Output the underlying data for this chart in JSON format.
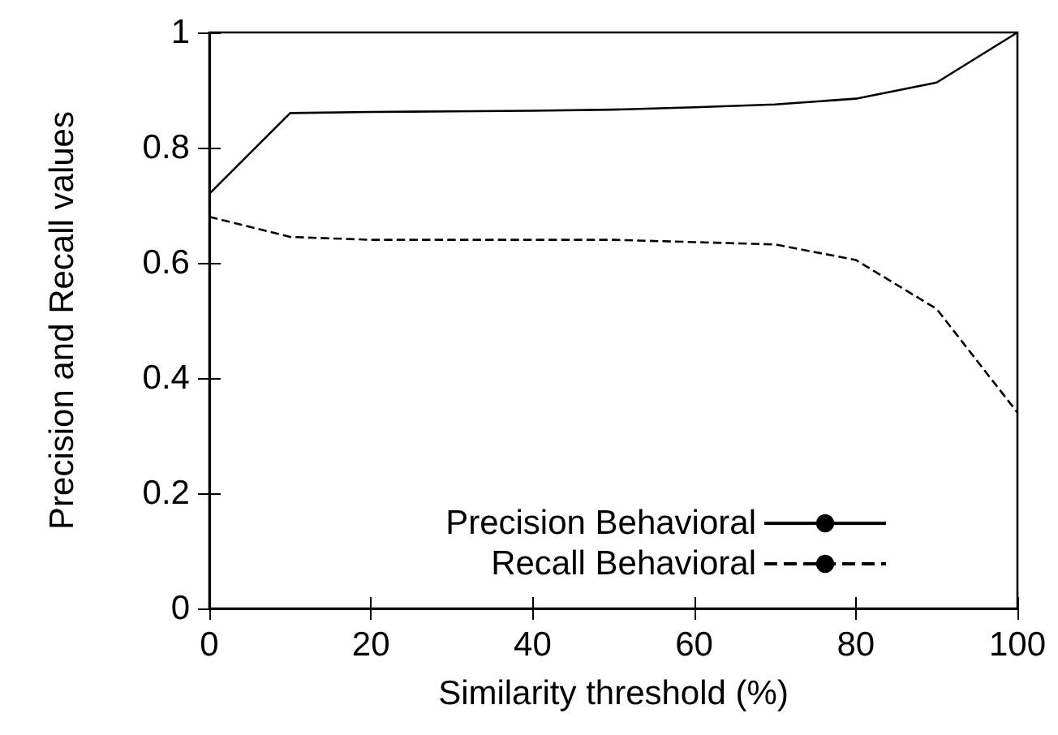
{
  "chart_data": {
    "type": "line",
    "xlabel": "Similarity threshold (%)",
    "ylabel": "Precision and Recall values",
    "x": [
      0,
      10,
      20,
      30,
      40,
      50,
      60,
      70,
      80,
      90,
      100
    ],
    "series": [
      {
        "name": "Precision Behavioral",
        "color": "#000000",
        "line_style": "solid",
        "values": [
          0.72,
          0.86,
          0.862,
          0.863,
          0.864,
          0.866,
          0.87,
          0.875,
          0.885,
          0.913,
          1.0
        ]
      },
      {
        "name": "Recall Behavioral",
        "color": "#000000",
        "line_style": "dashed",
        "values": [
          0.68,
          0.645,
          0.64,
          0.64,
          0.64,
          0.64,
          0.636,
          0.632,
          0.605,
          0.52,
          0.34
        ]
      }
    ],
    "xlim": [
      0,
      100
    ],
    "xticks": [
      0,
      20,
      40,
      60,
      80,
      100
    ],
    "ylim": [
      0,
      1
    ],
    "yticks": [
      0,
      0.2,
      0.4,
      0.6,
      0.8,
      1
    ],
    "grid": false,
    "legend": "bottom",
    "marker": "none"
  }
}
